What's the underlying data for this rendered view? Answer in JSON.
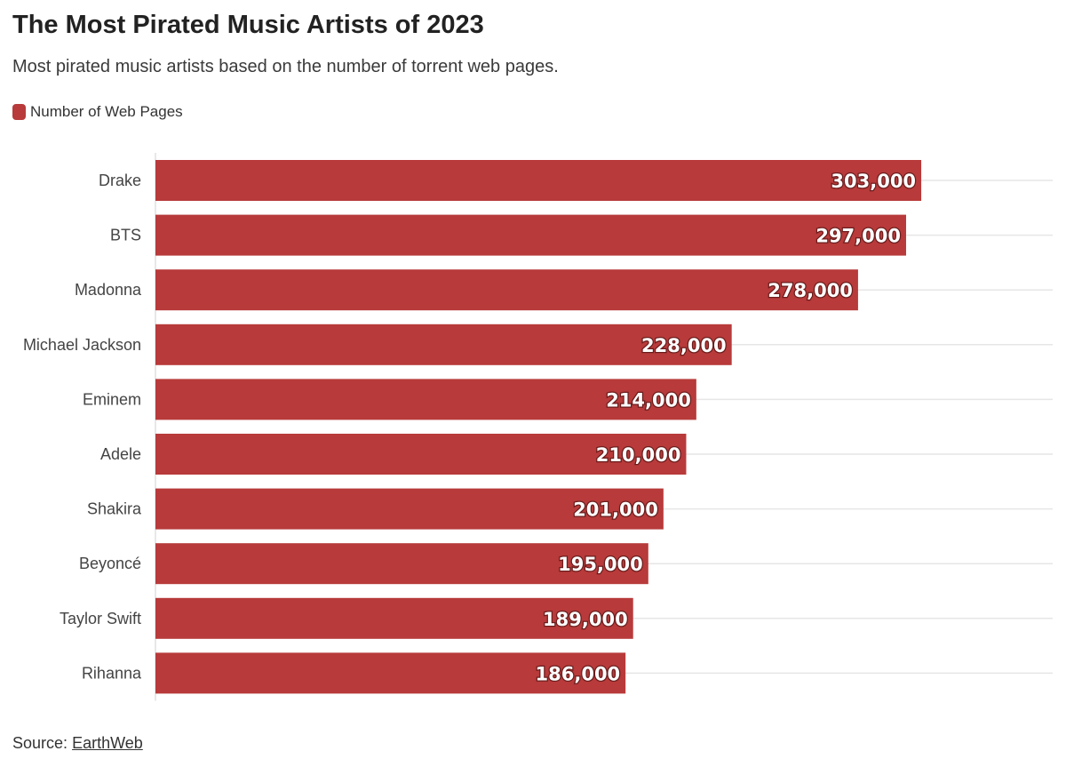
{
  "header": {
    "title": "The Most Pirated Music Artists of 2023",
    "subtitle": "Most pirated music artists based on the number of torrent web pages."
  },
  "legend": {
    "label": "Number of Web Pages"
  },
  "footer": {
    "source_prefix": "Source:",
    "source_link": "EarthWeb"
  },
  "colors": {
    "bar": "#b83a3a",
    "grid": "#e6e6e6",
    "label_text": "#ffffff"
  },
  "chart_data": {
    "type": "bar",
    "orientation": "horizontal",
    "categories": [
      "Drake",
      "BTS",
      "Madonna",
      "Michael Jackson",
      "Eminem",
      "Adele",
      "Shakira",
      "Beyoncé",
      "Taylor Swift",
      "Rihanna"
    ],
    "series": [
      {
        "name": "Number of Web Pages",
        "values": [
          303000,
          297000,
          278000,
          228000,
          214000,
          210000,
          201000,
          195000,
          189000,
          186000
        ],
        "labels": [
          "303,000",
          "297,000",
          "278,000",
          "228,000",
          "214,000",
          "210,000",
          "201,000",
          "195,000",
          "189,000",
          "186,000"
        ]
      }
    ],
    "title": "The Most Pirated Music Artists of 2023",
    "subtitle": "Most pirated music artists based on the number of torrent web pages.",
    "xlim": [
      0,
      355000
    ],
    "grid": true,
    "legend": "top-left"
  }
}
